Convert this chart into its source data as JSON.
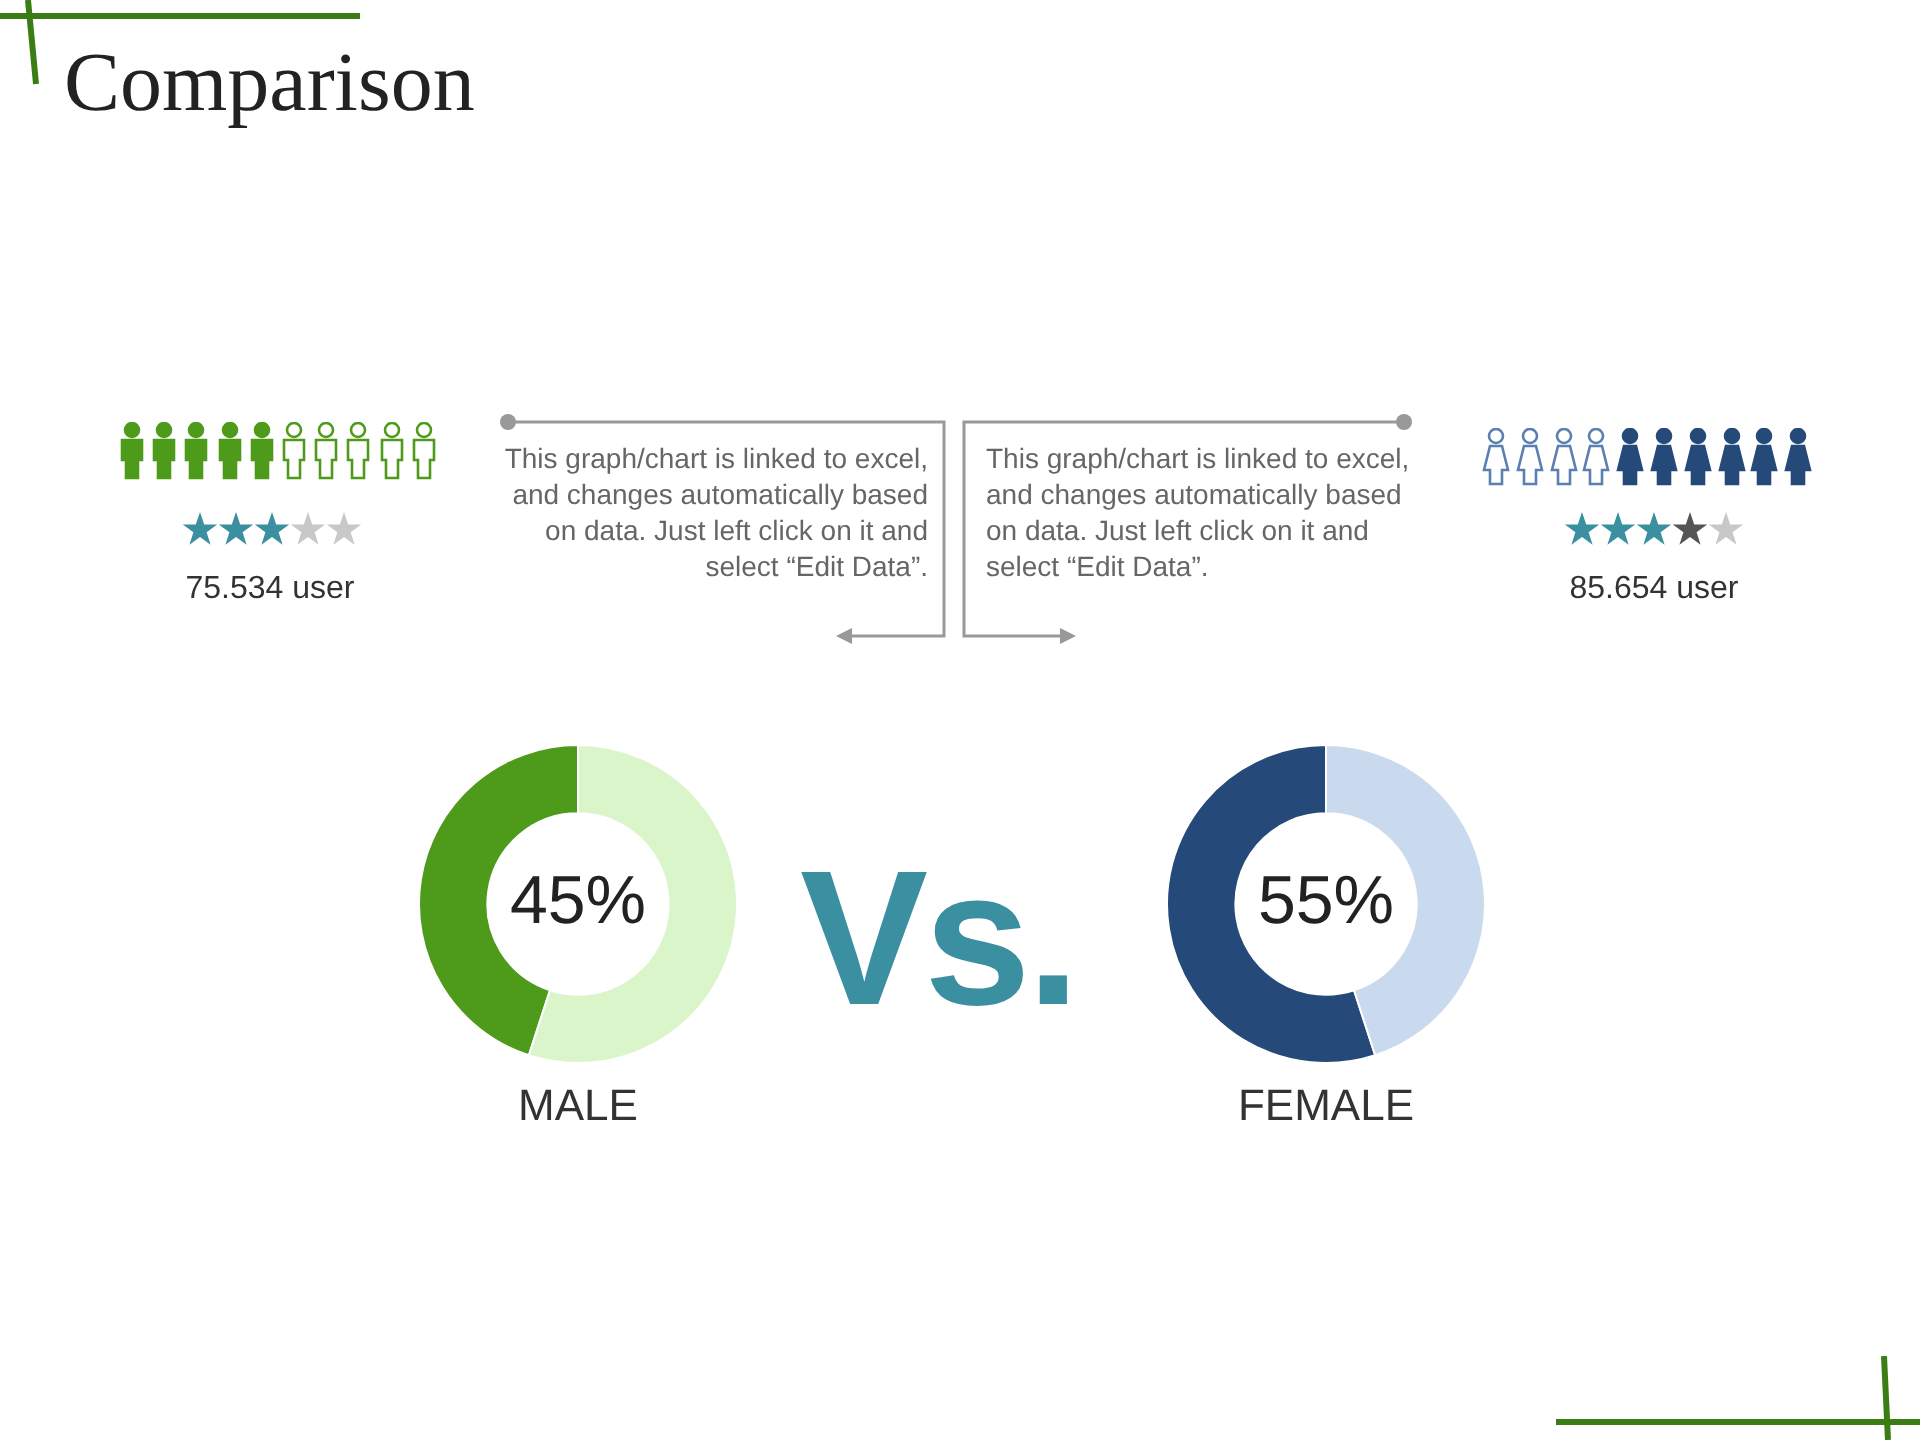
{
  "chart_data": [
    {
      "type": "other",
      "title": "Comparison",
      "annotations": [
        "This graph/chart is linked to excel, and changes automatically based on data. Just left click on it and select “Edit Data”.",
        "This graph/chart is linked to excel, and changes automatically based on data. Just left click on it and select “Edit Data”.",
        "Vs."
      ]
    },
    {
      "type": "donut",
      "title": "MALE",
      "categories": [
        null,
        null
      ],
      "values": [
        45,
        55
      ],
      "colors": [
        "#4e9a1a",
        "#d9f5c9"
      ],
      "value_labels": [
        "45%",
        null
      ],
      "annotations": [
        "75.534 user"
      ]
    },
    {
      "type": "donut",
      "title": "FEMALE",
      "categories": [
        null,
        null
      ],
      "values": [
        55,
        45
      ],
      "colors": [
        "#254a7a",
        "#c9d9ee"
      ],
      "value_labels": [
        "55%",
        null
      ],
      "annotations": [
        "85.654 user"
      ]
    }
  ]
}
